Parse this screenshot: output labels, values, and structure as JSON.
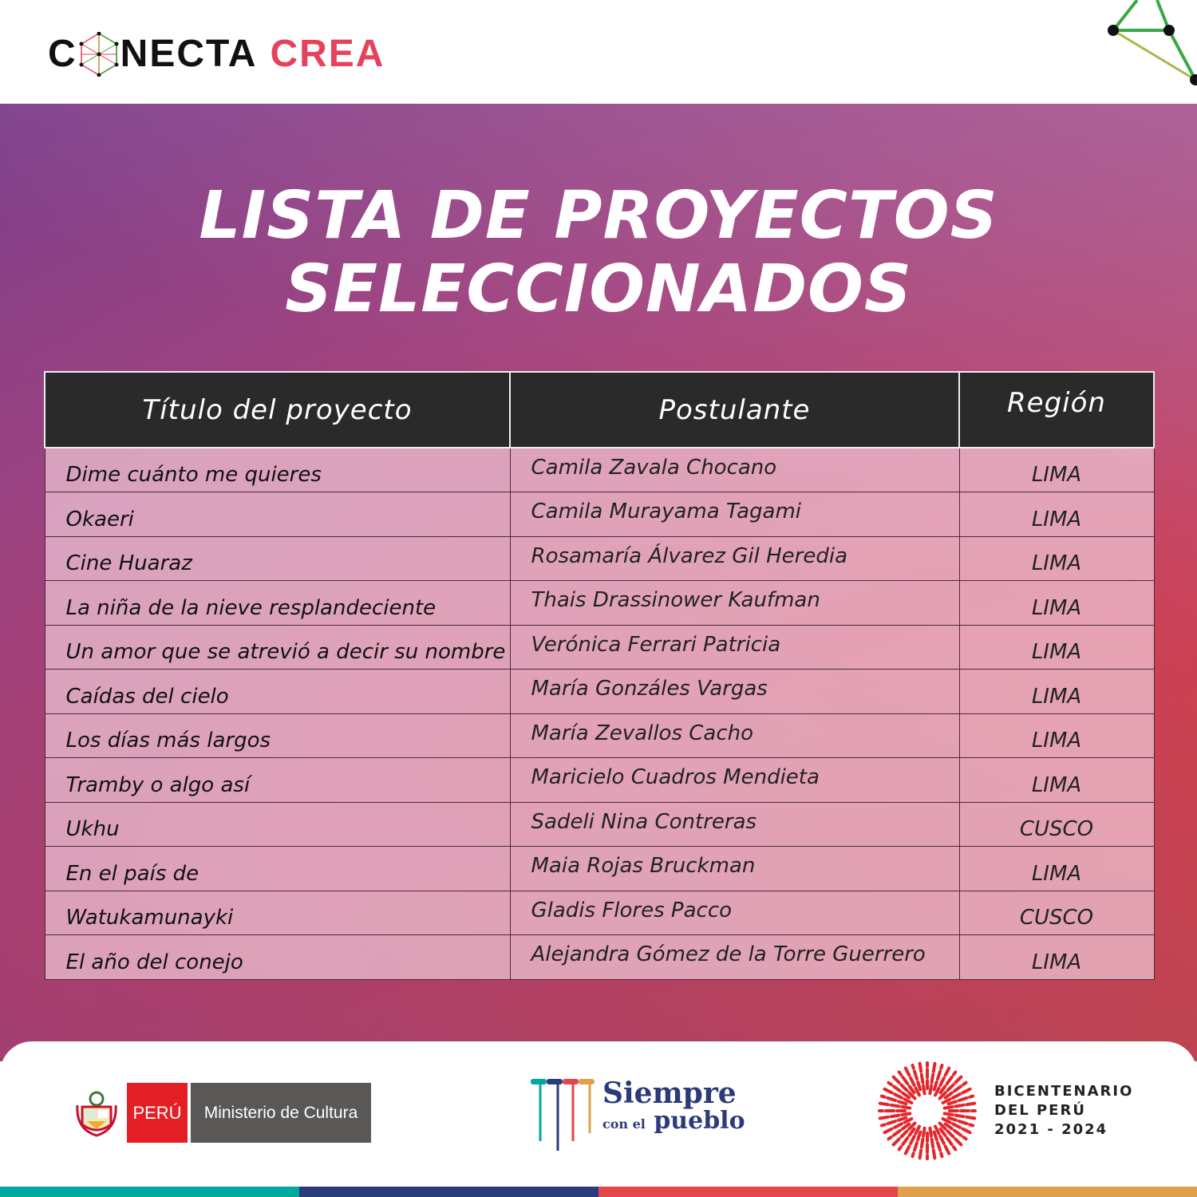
{
  "brand": {
    "logo_left": "C",
    "logo_mid": "NECTA",
    "logo_right": "CREA"
  },
  "title": {
    "line1": "LISTA DE PROYECTOS",
    "line2": "SELECCIONADOS"
  },
  "table": {
    "headers": [
      "Título del proyecto",
      "Postulante",
      "Región"
    ],
    "rows": [
      [
        "Dime cuánto me quieres",
        "Camila Zavala Chocano",
        "LIMA"
      ],
      [
        "Okaeri",
        "Camila Murayama Tagami",
        "LIMA"
      ],
      [
        "Cine Huaraz",
        "Rosamaría Álvarez Gil Heredia",
        "LIMA"
      ],
      [
        "La niña de la nieve resplandeciente",
        "Thais Drassinower Kaufman",
        "LIMA"
      ],
      [
        "Un amor que se atrevió a decir su nombre",
        "Verónica Ferrari Patricia",
        "LIMA"
      ],
      [
        "Caídas del cielo",
        "María Gonzáles Vargas",
        "LIMA"
      ],
      [
        "Los días más largos",
        "María Zevallos Cacho",
        "LIMA"
      ],
      [
        "Tramby o algo así",
        "Maricielo Cuadros Mendieta",
        "LIMA"
      ],
      [
        "Ukhu",
        "Sadeli Nina Contreras",
        "CUSCO"
      ],
      [
        "En el país de",
        "Maia Rojas Bruckman",
        "LIMA"
      ],
      [
        "Watukamunayki",
        "Gladis Flores Pacco",
        "CUSCO"
      ],
      [
        "El año del conejo",
        "Alejandra Gómez de la Torre Guerrero",
        "LIMA"
      ]
    ]
  },
  "footer": {
    "peru": "PERÚ",
    "ministry": "Ministerio de Cultura",
    "siempre_line1": "Siempre",
    "siempre_con": "con el",
    "siempre_pueblo": "pueblo",
    "bicentenario": [
      "BICENTENARIO",
      "DEL PERÚ",
      "2021 - 2024"
    ],
    "stripe_colors": [
      "#00a99d",
      "#293c7c",
      "#e5464b",
      "#e0a14c"
    ]
  }
}
